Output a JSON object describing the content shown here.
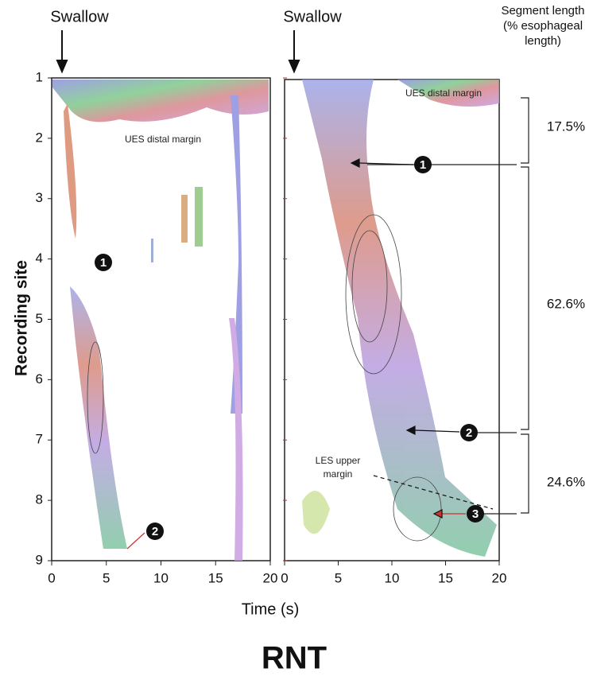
{
  "header": {
    "events": [
      "Swallow",
      "Swallow"
    ],
    "segment_heading": [
      "Segment length",
      "(% esophageal",
      "length)"
    ]
  },
  "axes": {
    "y_title": "Recording site",
    "x_title": "Time (s)",
    "y_ticks": [
      "1",
      "2",
      "3",
      "4",
      "5",
      "6",
      "7",
      "8",
      "9"
    ],
    "left_x_ticks": [
      "0",
      "5",
      "10",
      "15",
      "20"
    ],
    "right_x_ticks": [
      "0",
      "5",
      "10",
      "15",
      "20"
    ]
  },
  "annotations": {
    "left_ues": "UES distal margin",
    "right_ues": "UES distal margin",
    "les": [
      "LES upper",
      "margin"
    ],
    "left_markers": [
      "1",
      "2"
    ],
    "right_markers": [
      "1",
      "2",
      "3"
    ]
  },
  "segments": [
    "17.5%",
    "62.6%",
    "24.6%"
  ],
  "caption": "RNT"
}
